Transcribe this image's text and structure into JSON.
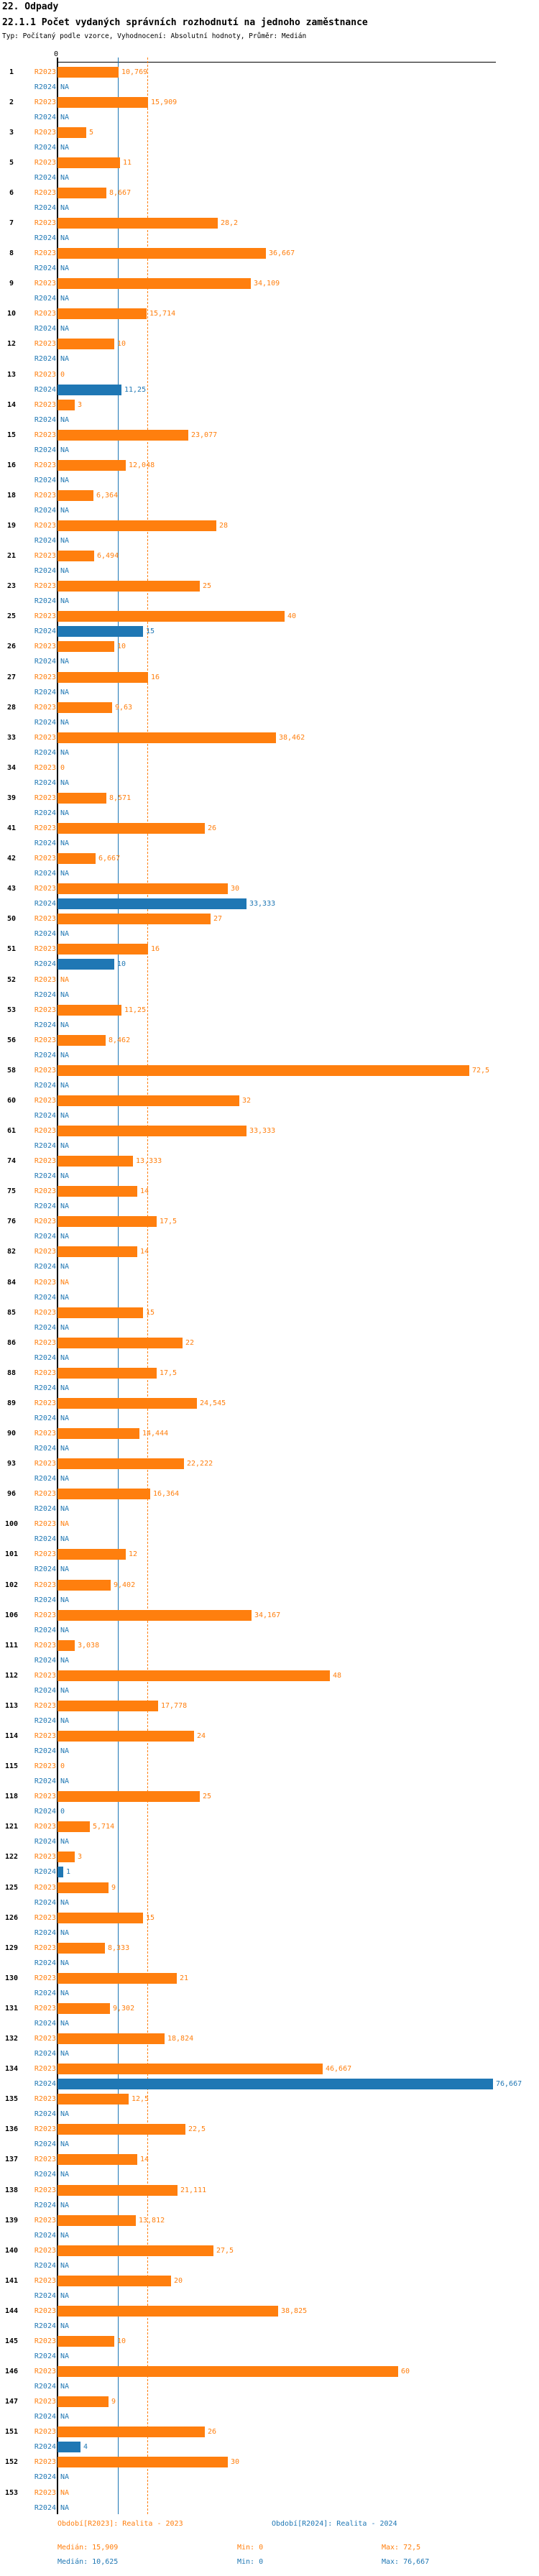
{
  "header": {
    "title": "22. Odpady",
    "subtitle": "22.1.1 Počet vydaných správních rozhodnutí na jednoho zaměstnance",
    "meta": "Typ: Počítaný podle vzorce, Vyhodnocení: Absolutní hodnoty, Průměr: Medián"
  },
  "axis": {
    "zero_label": "0"
  },
  "colors": {
    "r2023": "#ff7f0e",
    "r2024": "#1f77b4",
    "axis": "#000000"
  },
  "series_labels": {
    "r2023": "R2023",
    "r2024": "R2024"
  },
  "na_text": "NA",
  "legend": {
    "r2023": {
      "period": "Období[R2023]: Realita - 2023",
      "median": "Medián: 15,909",
      "min": "Min: 0",
      "max": "Max: 72,5"
    },
    "r2024": {
      "period": "Období[R2024]: Realita - 2024",
      "median": "Medián: 10,625",
      "min": "Min: 0",
      "max": "Max: 76,667"
    }
  },
  "chart_data": {
    "type": "bar",
    "orientation": "horizontal",
    "title": "22.1.1 Počet vydaných správních rozhodnutí na jednoho zaměstnance",
    "series_names": [
      "R2023",
      "R2024"
    ],
    "decimal_separator": ",",
    "x_axis": {
      "ticks": [
        0
      ],
      "approx_max": 78,
      "gridlines": false
    },
    "reference_lines": {
      "median_r2023": 15.909,
      "median_r2024": 10.625
    },
    "stats": {
      "r2023": {
        "median": 15.909,
        "min": 0,
        "max": 72.5
      },
      "r2024": {
        "median": 10.625,
        "min": 0,
        "max": 76.667
      }
    },
    "rows": [
      {
        "id": "1",
        "r2023": "10,769",
        "r2024": "NA"
      },
      {
        "id": "2",
        "r2023": "15,909",
        "r2024": "NA"
      },
      {
        "id": "3",
        "r2023": "5",
        "r2024": "NA"
      },
      {
        "id": "5",
        "r2023": "11",
        "r2024": "NA"
      },
      {
        "id": "6",
        "r2023": "8,667",
        "r2024": "NA"
      },
      {
        "id": "7",
        "r2023": "28,2",
        "r2024": "NA"
      },
      {
        "id": "8",
        "r2023": "36,667",
        "r2024": "NA"
      },
      {
        "id": "9",
        "r2023": "34,109",
        "r2024": "NA"
      },
      {
        "id": "10",
        "r2023": "15,714",
        "r2024": "NA"
      },
      {
        "id": "12",
        "r2023": "10",
        "r2024": "NA"
      },
      {
        "id": "13",
        "r2023": "0",
        "r2024": "11,25"
      },
      {
        "id": "14",
        "r2023": "3",
        "r2024": "NA"
      },
      {
        "id": "15",
        "r2023": "23,077",
        "r2024": "NA"
      },
      {
        "id": "16",
        "r2023": "12,048",
        "r2024": "NA"
      },
      {
        "id": "18",
        "r2023": "6,364",
        "r2024": "NA"
      },
      {
        "id": "19",
        "r2023": "28",
        "r2024": "NA"
      },
      {
        "id": "21",
        "r2023": "6,494",
        "r2024": "NA"
      },
      {
        "id": "23",
        "r2023": "25",
        "r2024": "NA"
      },
      {
        "id": "25",
        "r2023": "40",
        "r2024": "15"
      },
      {
        "id": "26",
        "r2023": "10",
        "r2024": "NA"
      },
      {
        "id": "27",
        "r2023": "16",
        "r2024": "NA"
      },
      {
        "id": "28",
        "r2023": "9,63",
        "r2024": "NA"
      },
      {
        "id": "33",
        "r2023": "38,462",
        "r2024": "NA"
      },
      {
        "id": "34",
        "r2023": "0",
        "r2024": "NA"
      },
      {
        "id": "39",
        "r2023": "8,571",
        "r2024": "NA"
      },
      {
        "id": "41",
        "r2023": "26",
        "r2024": "NA"
      },
      {
        "id": "42",
        "r2023": "6,667",
        "r2024": "NA"
      },
      {
        "id": "43",
        "r2023": "30",
        "r2024": "33,333"
      },
      {
        "id": "50",
        "r2023": "27",
        "r2024": "NA"
      },
      {
        "id": "51",
        "r2023": "16",
        "r2024": "10"
      },
      {
        "id": "52",
        "r2023": "NA",
        "r2024": "NA"
      },
      {
        "id": "53",
        "r2023": "11,25",
        "r2024": "NA"
      },
      {
        "id": "56",
        "r2023": "8,462",
        "r2024": "NA"
      },
      {
        "id": "58",
        "r2023": "72,5",
        "r2024": "NA"
      },
      {
        "id": "60",
        "r2023": "32",
        "r2024": "NA"
      },
      {
        "id": "61",
        "r2023": "33,333",
        "r2024": "NA"
      },
      {
        "id": "74",
        "r2023": "13,333",
        "r2024": "NA"
      },
      {
        "id": "75",
        "r2023": "14",
        "r2024": "NA"
      },
      {
        "id": "76",
        "r2023": "17,5",
        "r2024": "NA"
      },
      {
        "id": "82",
        "r2023": "14",
        "r2024": "NA"
      },
      {
        "id": "84",
        "r2023": "NA",
        "r2024": "NA"
      },
      {
        "id": "85",
        "r2023": "15",
        "r2024": "NA"
      },
      {
        "id": "86",
        "r2023": "22",
        "r2024": "NA"
      },
      {
        "id": "88",
        "r2023": "17,5",
        "r2024": "NA"
      },
      {
        "id": "89",
        "r2023": "24,545",
        "r2024": "NA"
      },
      {
        "id": "90",
        "r2023": "14,444",
        "r2024": "NA"
      },
      {
        "id": "93",
        "r2023": "22,222",
        "r2024": "NA"
      },
      {
        "id": "96",
        "r2023": "16,364",
        "r2024": "NA"
      },
      {
        "id": "100",
        "r2023": "NA",
        "r2024": "NA"
      },
      {
        "id": "101",
        "r2023": "12",
        "r2024": "NA"
      },
      {
        "id": "102",
        "r2023": "9,402",
        "r2024": "NA"
      },
      {
        "id": "106",
        "r2023": "34,167",
        "r2024": "NA"
      },
      {
        "id": "111",
        "r2023": "3,038",
        "r2024": "NA"
      },
      {
        "id": "112",
        "r2023": "48",
        "r2024": "NA"
      },
      {
        "id": "113",
        "r2023": "17,778",
        "r2024": "NA"
      },
      {
        "id": "114",
        "r2023": "24",
        "r2024": "NA"
      },
      {
        "id": "115",
        "r2023": "0",
        "r2024": "NA"
      },
      {
        "id": "118",
        "r2023": "25",
        "r2024": "0"
      },
      {
        "id": "121",
        "r2023": "5,714",
        "r2024": "NA"
      },
      {
        "id": "122",
        "r2023": "3",
        "r2024": "1"
      },
      {
        "id": "125",
        "r2023": "9",
        "r2024": "NA"
      },
      {
        "id": "126",
        "r2023": "15",
        "r2024": "NA"
      },
      {
        "id": "129",
        "r2023": "8,333",
        "r2024": "NA"
      },
      {
        "id": "130",
        "r2023": "21",
        "r2024": "NA"
      },
      {
        "id": "131",
        "r2023": "9,302",
        "r2024": "NA"
      },
      {
        "id": "132",
        "r2023": "18,824",
        "r2024": "NA"
      },
      {
        "id": "134",
        "r2023": "46,667",
        "r2024": "76,667"
      },
      {
        "id": "135",
        "r2023": "12,5",
        "r2024": "NA"
      },
      {
        "id": "136",
        "r2023": "22,5",
        "r2024": "NA"
      },
      {
        "id": "137",
        "r2023": "14",
        "r2024": "NA"
      },
      {
        "id": "138",
        "r2023": "21,111",
        "r2024": "NA"
      },
      {
        "id": "139",
        "r2023": "13,812",
        "r2024": "NA"
      },
      {
        "id": "140",
        "r2023": "27,5",
        "r2024": "NA"
      },
      {
        "id": "141",
        "r2023": "20",
        "r2024": "NA"
      },
      {
        "id": "144",
        "r2023": "38,825",
        "r2024": "NA"
      },
      {
        "id": "145",
        "r2023": "10",
        "r2024": "NA"
      },
      {
        "id": "146",
        "r2023": "60",
        "r2024": "NA"
      },
      {
        "id": "147",
        "r2023": "9",
        "r2024": "NA"
      },
      {
        "id": "151",
        "r2023": "26",
        "r2024": "4"
      },
      {
        "id": "152",
        "r2023": "30",
        "r2024": "NA"
      },
      {
        "id": "153",
        "r2023": "NA",
        "r2024": "NA"
      }
    ]
  }
}
